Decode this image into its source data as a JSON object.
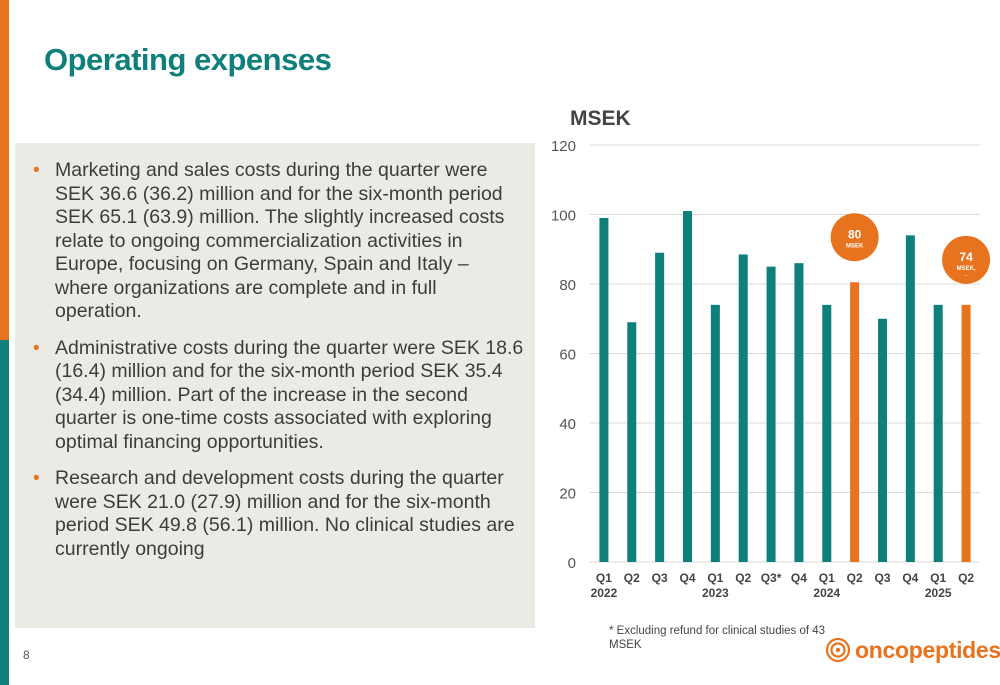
{
  "page": {
    "title": "Operating expenses",
    "page_number": "8",
    "footnote": "* Excluding refund for clinical studies of 43 MSEK",
    "logo_text": "oncopeptides",
    "colors": {
      "teal": "#0f7f7c",
      "orange": "#e8731e",
      "panel": "#ebebe6"
    }
  },
  "bullets": [
    {
      "text": "Marketing and sales costs during the quarter were SEK 36.6 (36.2) million and for the six-month period SEK 65.1 (63.9) million. The slightly increased costs relate to ongoing commercialization activities in Europe, focusing on Germany, Spain and Italy – where organizations are complete and in full operation."
    },
    {
      "text": "Administrative costs during the quarter were SEK 18.6 (16.4) million and for the six-month period SEK 35.4 (34.4) million. Part of the increase in the second quarter is one-time costs associated with exploring optimal financing opportunities."
    },
    {
      "text": "Research and development costs during the quarter were SEK 21.0 (27.9) million and for the six-month period SEK 49.8 (56.1) million. No clinical studies are currently ongoing"
    }
  ],
  "chart_data": {
    "type": "bar",
    "ylabel": "MSEK",
    "ylim": [
      0,
      120
    ],
    "yticks": [
      0,
      20,
      40,
      60,
      80,
      100,
      120
    ],
    "grid": true,
    "categories": [
      "Q1",
      "Q2",
      "Q3",
      "Q4",
      "Q1",
      "Q2",
      "Q3*",
      "Q4",
      "Q1",
      "Q2",
      "Q3",
      "Q4",
      "Q1",
      "Q2"
    ],
    "year_labels": [
      {
        "label": "2022",
        "index": 0
      },
      {
        "label": "2023",
        "index": 4
      },
      {
        "label": "2024",
        "index": 8
      },
      {
        "label": "2025",
        "index": 12
      }
    ],
    "values": [
      99,
      69,
      89,
      101,
      74,
      88.5,
      85,
      86,
      74,
      80.5,
      70,
      94,
      74,
      74
    ],
    "colors": [
      "teal",
      "teal",
      "teal",
      "teal",
      "teal",
      "teal",
      "teal",
      "teal",
      "teal",
      "orange",
      "teal",
      "teal",
      "teal",
      "orange"
    ],
    "annotations": [
      {
        "index": 9,
        "value": "80",
        "unit": "MSEK"
      },
      {
        "index": 13,
        "value": "74",
        "unit": "MSEK,",
        "extra": "-"
      }
    ]
  }
}
